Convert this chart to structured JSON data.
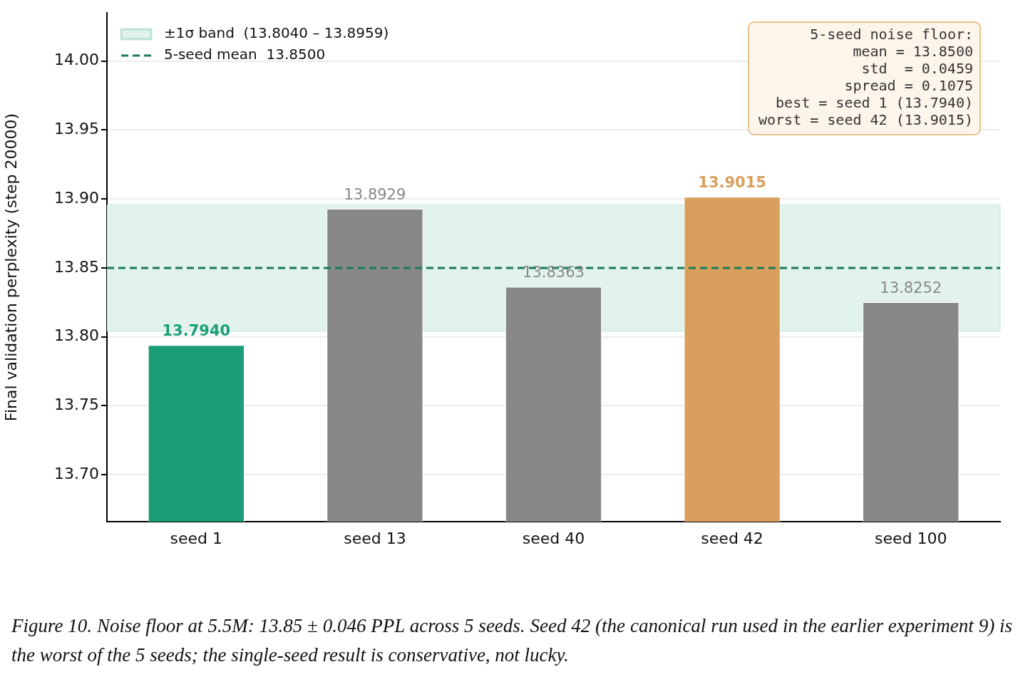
{
  "chart_data": {
    "type": "bar",
    "ylabel": "Final validation perplexity (step 20000)",
    "categories": [
      "seed 1",
      "seed 13",
      "seed 40",
      "seed 42",
      "seed 100"
    ],
    "values": [
      13.794,
      13.8929,
      13.8363,
      13.9015,
      13.8252
    ],
    "colors": [
      "#1b9e77",
      "#888888",
      "#888888",
      "#d89f5d",
      "#888888"
    ],
    "ylim": [
      13.666,
      14.035
    ],
    "yticks": [
      {
        "value": 13.7,
        "label": "13.70"
      },
      {
        "value": 13.75,
        "label": "13.75"
      },
      {
        "value": 13.8,
        "label": "13.80"
      },
      {
        "value": 13.85,
        "label": "13.85"
      },
      {
        "value": 13.9,
        "label": "13.90"
      },
      {
        "value": 13.95,
        "label": "13.95"
      },
      {
        "value": 14.0,
        "label": "14.00"
      }
    ],
    "value_labels": [
      "13.7940",
      "13.8929",
      "13.8363",
      "13.9015",
      "13.8252"
    ],
    "grid": "y",
    "legend": "top left",
    "bands": [
      {
        "axis": "y",
        "from": 13.804,
        "to": 13.8959,
        "label": "±1σ band  (13.8040 – 13.8959)",
        "color": "#e2f3ec"
      }
    ],
    "ref_lines": [
      {
        "axis": "y",
        "value": 13.85,
        "label": "5-seed mean  13.8500",
        "color": "#1b7a58",
        "line_style": "dashed"
      }
    ],
    "annotations": [
      "5-seed noise floor:\nmean = 13.8500\nstd  = 0.0459\nspread = 0.1075\nbest = seed 1 (13.7940)\nworst = seed 42 (13.9015)",
      "Figure 10.  Noise floor at 5.5M: 13.85 ± 0.046 PPL across 5 seeds.  Seed 42 (the canonical run used in the earlier experiment 9) is the worst of the 5 seeds; the single-seed result is conservative, not lucky."
    ]
  }
}
